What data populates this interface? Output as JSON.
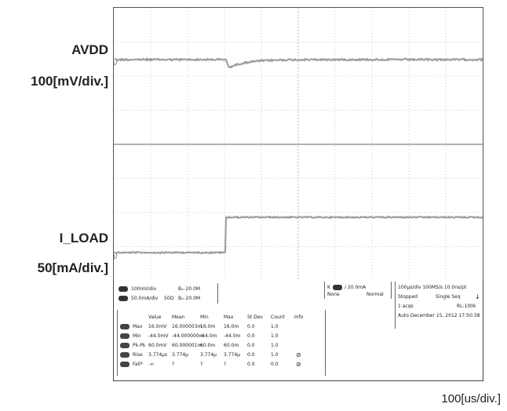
{
  "labels": {
    "ch1_name": "AVDD",
    "ch1_scale": "100[mV/div.]",
    "ch2_name": "I_LOAD",
    "ch2_scale": "50[mA/div.]",
    "timebase": "100[us/div.]"
  },
  "scope": {
    "marker_ch1": "1",
    "marker_ch2": "4"
  },
  "info": {
    "ch1_setting": "100mV/div",
    "ch1_bw": "Bₑₗ 20.0M",
    "ch2_setting": "50.0mA/div",
    "ch2_impedance": "50Ω",
    "ch2_bw": "Bₑₗ 20.0M",
    "trigger_level": "∕ 20.0mA",
    "trigger_none": "None",
    "trigger_mode": "Normal",
    "acq_line1": "100μs/div  100MS/s     10.0ns/pt",
    "acq_stopped": "Stopped",
    "acq_seq": "Single Seq",
    "acq_count": "1 acqs",
    "acq_rl": "RL:100k",
    "acq_date": "Auto  December 15, 2012  17:50:38"
  },
  "measurements": {
    "headers": [
      "Value",
      "Mean",
      "Min",
      "Max",
      "St Dev",
      "Count",
      "Info"
    ],
    "rows": [
      {
        "label": "Max",
        "values": [
          "16.0mV",
          "16.000003m",
          "16.0m",
          "16.0m",
          "0.0",
          "1.0",
          ""
        ]
      },
      {
        "label": "Min",
        "values": [
          "-44.0mV",
          "-44.000000m",
          "-44.0m",
          "-44.0m",
          "0.0",
          "1.0",
          ""
        ]
      },
      {
        "label": "Pk-Pk",
        "values": [
          "60.0mV",
          "60.000001m",
          "60.0m",
          "60.0m",
          "0.0",
          "1.0",
          ""
        ]
      },
      {
        "label": "Rise",
        "values": [
          "3.774μs",
          "3.774μ",
          "3.774μ",
          "3.774μ",
          "0.0",
          "1.0",
          ""
        ]
      },
      {
        "label": "Fall*",
        "values": [
          "-∞",
          "?",
          "?",
          "?",
          "0.0",
          "0.0",
          ""
        ]
      }
    ]
  },
  "colors": {
    "trace": "#9a9a9a",
    "grid": "#c8c8c8",
    "panel_chip": "#3a3a3a"
  }
}
